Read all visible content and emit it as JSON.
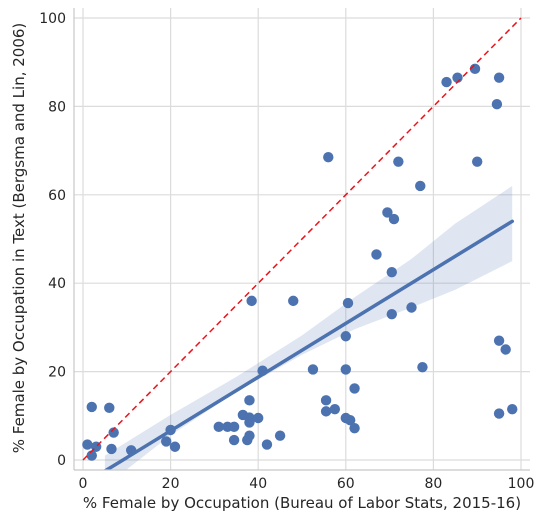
{
  "chart_data": {
    "type": "scatter",
    "title": "",
    "xlabel": "% Female by Occupation (Bureau of Labor Stats, 2015-16)",
    "ylabel": "% Female by Occupation in Text (Bergsma and Lin, 2006)",
    "xlim": [
      -2,
      102
    ],
    "ylim": [
      -2,
      102
    ],
    "xticks": [
      0,
      20,
      40,
      60,
      80,
      100
    ],
    "yticks": [
      0,
      20,
      40,
      60,
      80,
      100
    ],
    "grid": true,
    "colors": {
      "points": "#4c72b0",
      "regression": "#4c72b0",
      "band": "#4c72b0",
      "identity": "#e8141c",
      "grid": "#dcdcdc",
      "spine": "#c8c8c8"
    },
    "points": [
      [
        1,
        3.5
      ],
      [
        2,
        1
      ],
      [
        2,
        12
      ],
      [
        3,
        3
      ],
      [
        6,
        11.8
      ],
      [
        6.5,
        2.5
      ],
      [
        7,
        6.2
      ],
      [
        11,
        2.2
      ],
      [
        19,
        4.2
      ],
      [
        20,
        6.8
      ],
      [
        21,
        3
      ],
      [
        31,
        7.5
      ],
      [
        33,
        7.5
      ],
      [
        34.5,
        7.5
      ],
      [
        34.5,
        4.5
      ],
      [
        36.5,
        10.2
      ],
      [
        37.5,
        4.5
      ],
      [
        38,
        9.6
      ],
      [
        38,
        8.5
      ],
      [
        38,
        5.5
      ],
      [
        38,
        13.5
      ],
      [
        38.5,
        36
      ],
      [
        40,
        9.5
      ],
      [
        41,
        20.2
      ],
      [
        42,
        3.5
      ],
      [
        45,
        5.5
      ],
      [
        48,
        36
      ],
      [
        52.5,
        20.5
      ],
      [
        55.5,
        11
      ],
      [
        55.5,
        13.5
      ],
      [
        56,
        68.5
      ],
      [
        57.5,
        11.5
      ],
      [
        60,
        28
      ],
      [
        60,
        20.5
      ],
      [
        60,
        9.5
      ],
      [
        60.5,
        35.5
      ],
      [
        61,
        9
      ],
      [
        62,
        16.2
      ],
      [
        62,
        7.2
      ],
      [
        67,
        46.5
      ],
      [
        69.5,
        56
      ],
      [
        70.5,
        33
      ],
      [
        70.5,
        42.5
      ],
      [
        71,
        54.5
      ],
      [
        72,
        67.5
      ],
      [
        75,
        34.5
      ],
      [
        77,
        62
      ],
      [
        77.5,
        21
      ],
      [
        83,
        85.5
      ],
      [
        85.5,
        86.5
      ],
      [
        89.5,
        88.5
      ],
      [
        90,
        67.5
      ],
      [
        94.5,
        80.5
      ],
      [
        95,
        86.5
      ],
      [
        95,
        27
      ],
      [
        95,
        10.5
      ],
      [
        96.5,
        25
      ],
      [
        98,
        11.5
      ]
    ],
    "regression": {
      "x_start": 5,
      "x_end": 98,
      "y_start": -2.5,
      "y_end": 54
    },
    "confidence_band": [
      [
        5,
        -6,
        1
      ],
      [
        20,
        5.6,
        10.2
      ],
      [
        35,
        15.4,
        18.8
      ],
      [
        50,
        23.8,
        28.2
      ],
      [
        62,
        29.6,
        36.8
      ],
      [
        75,
        34.5,
        45.5
      ],
      [
        85,
        38.5,
        53.5
      ],
      [
        98,
        45,
        62
      ]
    ],
    "identity_line": {
      "from": [
        0,
        0
      ],
      "to": [
        100,
        100
      ]
    }
  }
}
